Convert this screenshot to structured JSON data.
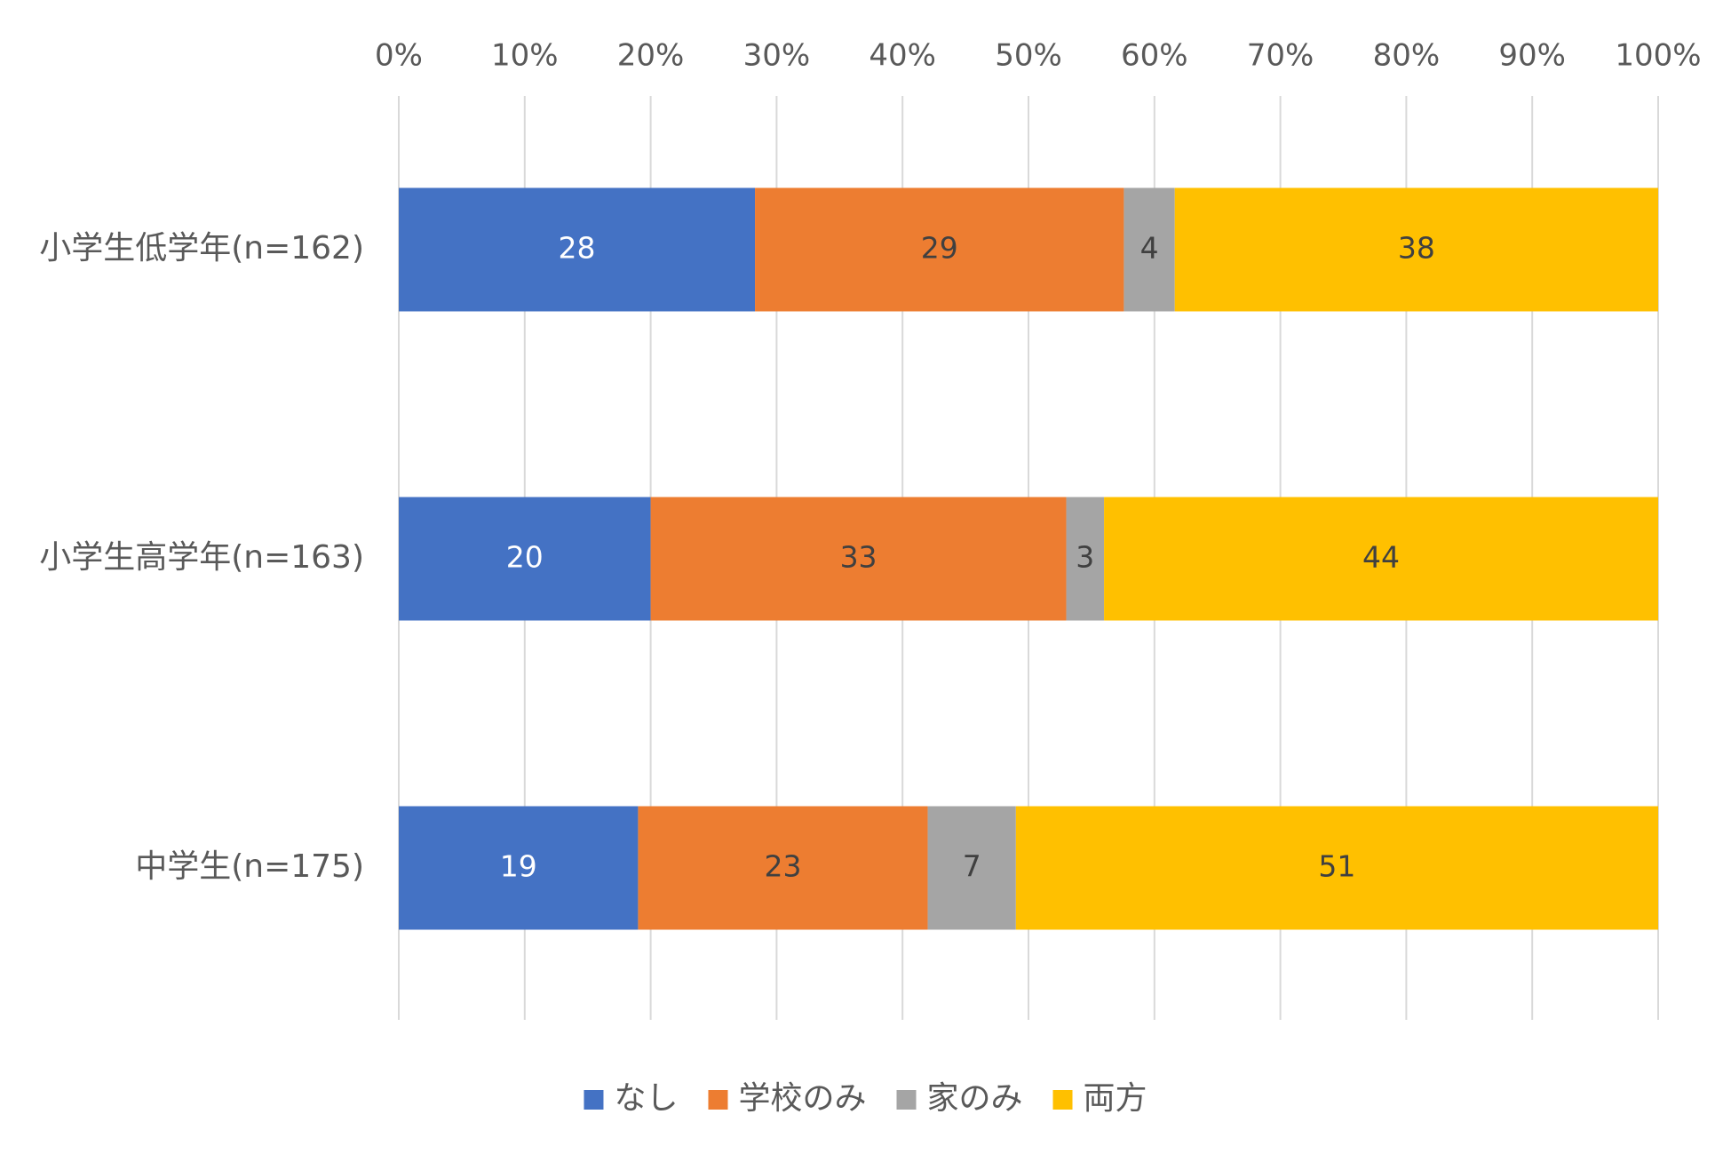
{
  "chart_data": {
    "type": "bar",
    "orientation": "horizontal",
    "stacked": "percent",
    "title": "",
    "xlabel": "",
    "ylabel": "",
    "xlim": [
      0,
      100
    ],
    "x_ticks": [
      "0%",
      "10%",
      "20%",
      "30%",
      "40%",
      "50%",
      "60%",
      "70%",
      "80%",
      "90%",
      "100%"
    ],
    "grid": "vertical",
    "legend_position": "bottom",
    "categories": [
      "小学生低学年(n=162)",
      "小学生高学年(n=163)",
      "中学生(n=175)"
    ],
    "series": [
      {
        "name": "なし",
        "color": "#4472C4",
        "label_color": "#FFFFFF",
        "values": [
          28,
          20,
          19
        ]
      },
      {
        "name": "学校のみ",
        "color": "#ED7D31",
        "label_color": "#404040",
        "values": [
          29,
          33,
          23
        ]
      },
      {
        "name": "家のみ",
        "color": "#A5A5A5",
        "label_color": "#404040",
        "values": [
          4,
          3,
          7
        ]
      },
      {
        "name": "両方",
        "color": "#FFC000",
        "label_color": "#404040",
        "values": [
          38,
          44,
          51
        ]
      }
    ]
  }
}
